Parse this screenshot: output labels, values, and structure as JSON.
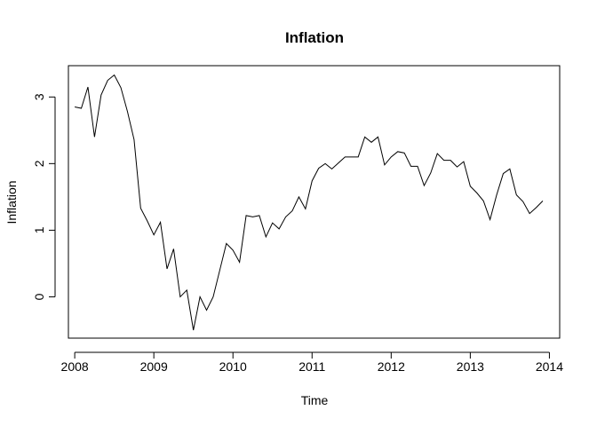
{
  "chart_data": {
    "type": "line",
    "title": "Inflation",
    "xlabel": "Time",
    "ylabel": "Inflation",
    "xlim": [
      2007.92,
      2014.13
    ],
    "ylim": [
      -0.62,
      3.47
    ],
    "x_ticks": [
      2008,
      2009,
      2010,
      2011,
      2012,
      2013,
      2014
    ],
    "x_tick_labels": [
      "2008",
      "2009",
      "2010",
      "2011",
      "2012",
      "2013",
      "2014"
    ],
    "y_ticks": [
      0,
      1,
      2,
      3
    ],
    "y_tick_labels": [
      "0",
      "1",
      "2",
      "3"
    ],
    "grid": false,
    "legend": "none",
    "line_color": "#000000",
    "series": [
      {
        "x_start": 2008,
        "step": 0.08333,
        "values": [
          2.85,
          2.83,
          3.15,
          2.4,
          3.03,
          3.25,
          3.33,
          3.14,
          2.78,
          2.36,
          1.33,
          1.14,
          0.93,
          1.12,
          0.42,
          0.72,
          0.0,
          0.1,
          -0.5,
          0.0,
          -0.2,
          0.0,
          0.4,
          0.8,
          0.7,
          0.52,
          1.22,
          1.2,
          1.22,
          0.9,
          1.11,
          1.02,
          1.2,
          1.29,
          1.5,
          1.32,
          1.74,
          1.93,
          2.0,
          1.92,
          2.01,
          2.1,
          2.1,
          2.1,
          2.4,
          2.32,
          2.4,
          1.98,
          2.1,
          2.18,
          2.16,
          1.96,
          1.96,
          1.67,
          1.86,
          2.15,
          2.05,
          2.05,
          1.95,
          2.03,
          1.66,
          1.56,
          1.44,
          1.16,
          1.53,
          1.85,
          1.92,
          1.53,
          1.43,
          1.25,
          1.34,
          1.44
        ]
      }
    ]
  }
}
